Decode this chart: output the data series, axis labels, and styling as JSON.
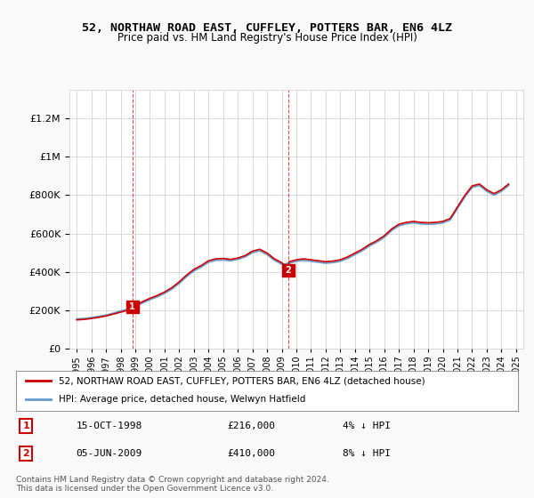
{
  "title": "52, NORTHAW ROAD EAST, CUFFLEY, POTTERS BAR, EN6 4LZ",
  "subtitle": "Price paid vs. HM Land Registry's House Price Index (HPI)",
  "legend_line1": "52, NORTHAW ROAD EAST, CUFFLEY, POTTERS BAR, EN6 4LZ (detached house)",
  "legend_line2": "HPI: Average price, detached house, Welwyn Hatfield",
  "sale1_label": "1",
  "sale1_date": "15-OCT-1998",
  "sale1_price": "£216,000",
  "sale1_hpi": "4% ↓ HPI",
  "sale2_label": "2",
  "sale2_date": "05-JUN-2009",
  "sale2_price": "£410,000",
  "sale2_hpi": "8% ↓ HPI",
  "footer": "Contains HM Land Registry data © Crown copyright and database right 2024.\nThis data is licensed under the Open Government Licence v3.0.",
  "sale_color": "#cc0000",
  "hpi_color": "#6699cc",
  "background_color": "#f9f9f9",
  "plot_bg_color": "#ffffff",
  "grid_color": "#cccccc",
  "sale_points": [
    {
      "year": 1998.79,
      "price": 216000
    },
    {
      "year": 2009.43,
      "price": 410000
    }
  ],
  "vline_years": [
    1998.79,
    2009.43
  ],
  "ylim": [
    0,
    1350000
  ],
  "xlim": [
    1994.5,
    2025.5
  ]
}
